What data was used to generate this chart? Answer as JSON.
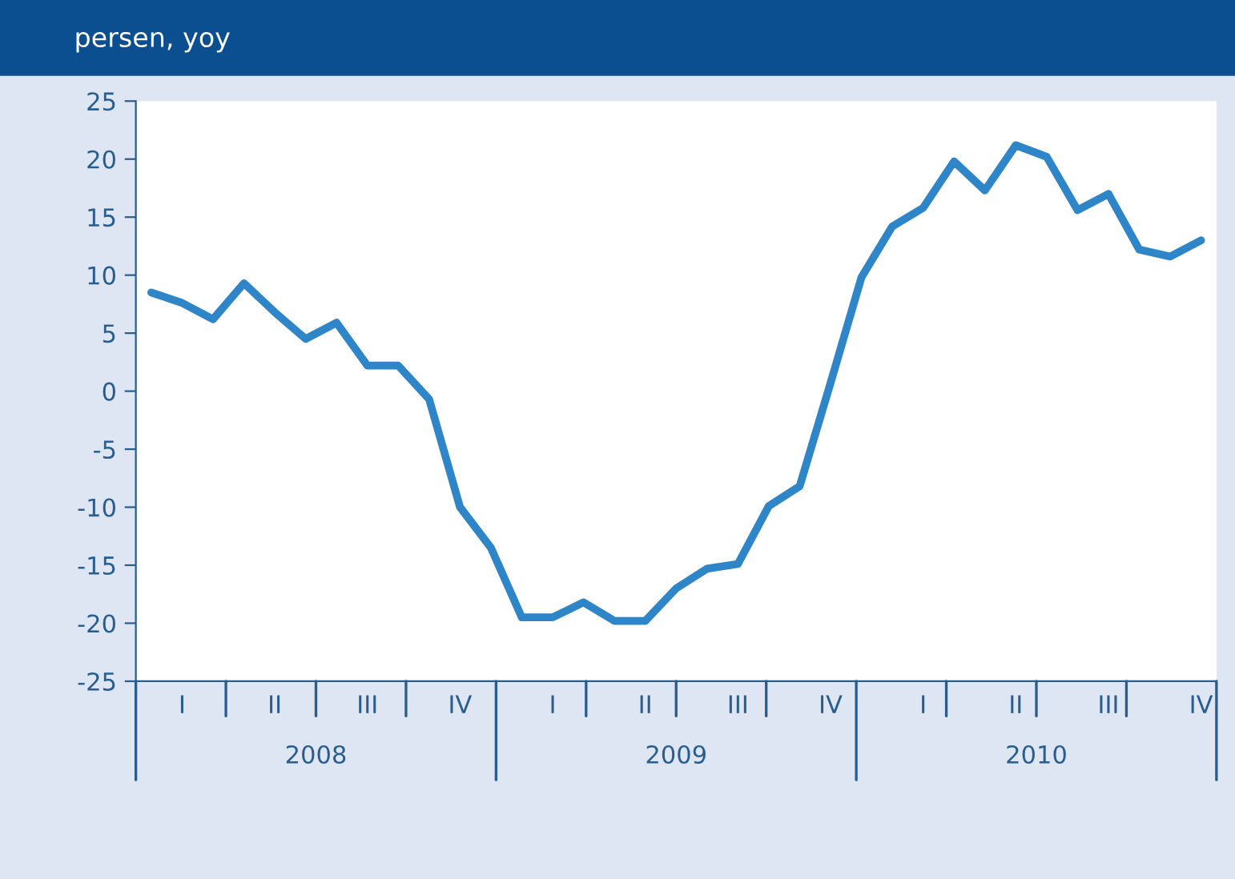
{
  "chart_data": {
    "type": "line",
    "title": "persen, yoy",
    "categories": [
      null,
      "I",
      null,
      null,
      "II",
      null,
      null,
      "III",
      null,
      null,
      "IV",
      null,
      null,
      "I",
      null,
      null,
      "II",
      null,
      null,
      "III",
      null,
      null,
      "IV",
      null,
      null,
      "I",
      null,
      null,
      "II",
      null,
      null,
      "III",
      null,
      null,
      "IV"
    ],
    "series": [
      {
        "color": "#2e86c8",
        "values": [
          8.5,
          7.6,
          6.2,
          9.3,
          6.8,
          4.5,
          5.9,
          2.2,
          2.2,
          -0.7,
          -10,
          -13.5,
          -19.5,
          -19.5,
          -18.2,
          -19.8,
          -19.8,
          -17,
          -15.3,
          -14.9,
          -9.9,
          -8.2,
          0.7,
          9.8,
          14.2,
          15.8,
          19.8,
          17.3,
          21.2,
          20.2,
          15.6,
          17.0,
          12.2,
          11.6,
          13
        ]
      }
    ],
    "annotations": [
      "2008",
      "2009",
      "2010"
    ],
    "ylim": [
      -25,
      25
    ],
    "yticks": [
      -25,
      -20,
      -15,
      -10,
      -5,
      0,
      5,
      10,
      15,
      20,
      25
    ],
    "grid": false,
    "legend": false,
    "line_style": "solid",
    "marker": "none"
  }
}
